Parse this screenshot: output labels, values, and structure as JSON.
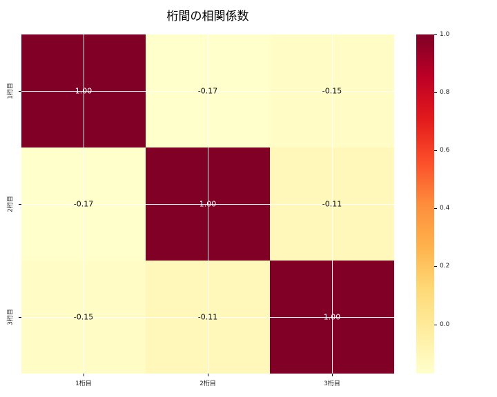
{
  "title": "桁間の相関係数",
  "chart_data": {
    "type": "heatmap",
    "title": "桁間の相関係数",
    "categories": [
      "1桁目",
      "2桁目",
      "3桁目"
    ],
    "x_tick_labels": [
      "1桁目",
      "2桁目",
      "3桁目"
    ],
    "y_tick_labels": [
      "1桁目",
      "2桁目",
      "3桁目"
    ],
    "matrix": [
      [
        1.0,
        -0.17,
        -0.15
      ],
      [
        -0.17,
        1.0,
        -0.11
      ],
      [
        -0.15,
        -0.11,
        1.0
      ]
    ],
    "cell_labels": [
      [
        "1.00",
        "-0.17",
        "-0.15"
      ],
      [
        "-0.17",
        "1.00",
        "-0.11"
      ],
      [
        "-0.15",
        "-0.11",
        "1.00"
      ]
    ],
    "cell_colors": [
      [
        "#800026",
        "#ffffcc",
        "#fffcc6"
      ],
      [
        "#ffffcc",
        "#800026",
        "#fff8ba"
      ],
      [
        "#fffcc6",
        "#fff8ba",
        "#800026"
      ]
    ],
    "cell_text_colors": [
      [
        "#ffffff",
        "#0f0f0f",
        "#0f0f0f"
      ],
      [
        "#0f0f0f",
        "#ffffff",
        "#0f0f0f"
      ],
      [
        "#0f0f0f",
        "#0f0f0f",
        "#ffffff"
      ]
    ],
    "grid": true,
    "grid_color": "#ffffff",
    "colormap": "YlOrRd",
    "vmin": -0.17,
    "vmax": 1.0,
    "colorbar": {
      "tick_values": [
        1.0,
        0.8,
        0.6,
        0.4,
        0.2,
        0.0
      ],
      "tick_labels": [
        "1.0",
        "0.8",
        "0.6",
        "0.4",
        "0.2",
        "0.0"
      ],
      "gradient_colors_top_to_bottom": [
        "#800026",
        "#bd0026",
        "#e31a1c",
        "#fc4e2a",
        "#fd8d3c",
        "#feb24c",
        "#fed976",
        "#ffeda0",
        "#ffffcc"
      ]
    }
  }
}
